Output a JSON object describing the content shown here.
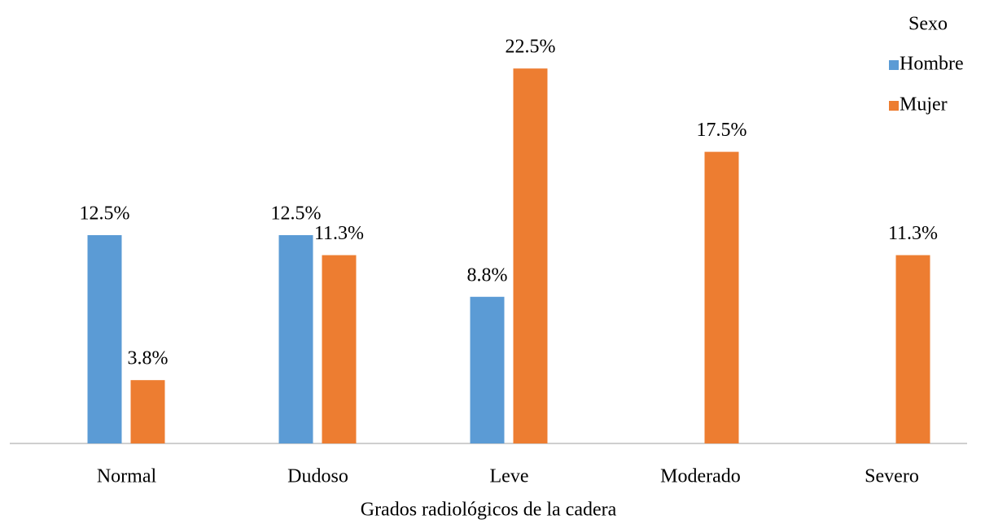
{
  "chart_data": {
    "type": "bar",
    "x_label": "Grados radiológicos de la cadera",
    "legend_title": "Sexo",
    "categories": [
      "Normal",
      "Dudoso",
      "Leve",
      "Moderado",
      "Severo"
    ],
    "series": [
      {
        "name": "Hombre",
        "color": "#5b9bd5",
        "values": [
          12.5,
          12.5,
          8.8,
          null,
          null
        ],
        "value_labels": [
          "12.5%",
          "12.5%",
          "8.8%",
          null,
          null
        ]
      },
      {
        "name": "Mujer",
        "color": "#ed7d31",
        "values": [
          3.8,
          11.3,
          22.5,
          17.5,
          11.3
        ],
        "value_labels": [
          "3.8%",
          "11.3%",
          "22.5%",
          "17.5%",
          "11.3%"
        ]
      }
    ],
    "ylim": [
      0,
      25
    ],
    "legend": "top-right"
  }
}
